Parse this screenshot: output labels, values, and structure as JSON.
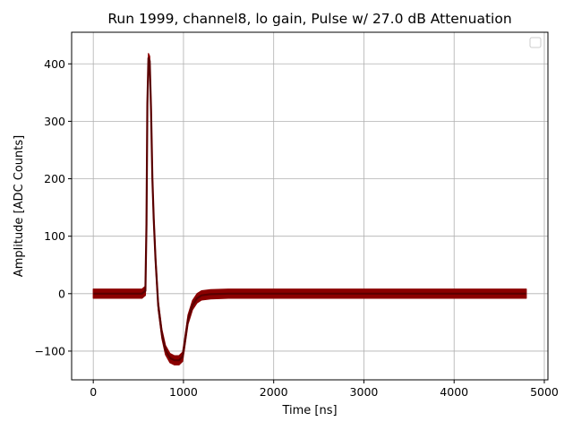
{
  "chart_data": {
    "type": "line",
    "title": "Run 1999, channel8, lo gain, Pulse w/ 27.0 dB Attenuation",
    "xlabel": "Time [ns]",
    "ylabel": "Amplitude [ADC Counts]",
    "xlim": [
      -240,
      5040
    ],
    "ylim": [
      -150,
      455
    ],
    "x_ticks": [
      0,
      1000,
      2000,
      3000,
      4000,
      5000
    ],
    "x_tick_labels": [
      "0",
      "1000",
      "2000",
      "3000",
      "4000",
      "5000"
    ],
    "y_ticks": [
      -100,
      0,
      100,
      200,
      300,
      400
    ],
    "y_tick_labels": [
      "−100",
      "0",
      "100",
      "200",
      "300",
      "400"
    ],
    "grid": true,
    "legend": "top-right (empty)",
    "series": [
      {
        "color": "#8b0000",
        "band_halfwidth": 8,
        "x": [
          0,
          540,
          578,
          590,
          600,
          612,
          625,
          640,
          655,
          670,
          690,
          720,
          760,
          800,
          850,
          900,
          950,
          990,
          1010,
          1050,
          1100,
          1150,
          1200,
          1300,
          1500,
          2000,
          3000,
          4000,
          4800
        ],
        "y": [
          0,
          0,
          5,
          120,
          330,
          410,
          405,
          320,
          200,
          130,
          60,
          -20,
          -70,
          -98,
          -112,
          -116,
          -116,
          -110,
          -90,
          -45,
          -20,
          -8,
          -3,
          -1,
          0,
          0,
          0,
          0,
          0
        ]
      }
    ]
  }
}
